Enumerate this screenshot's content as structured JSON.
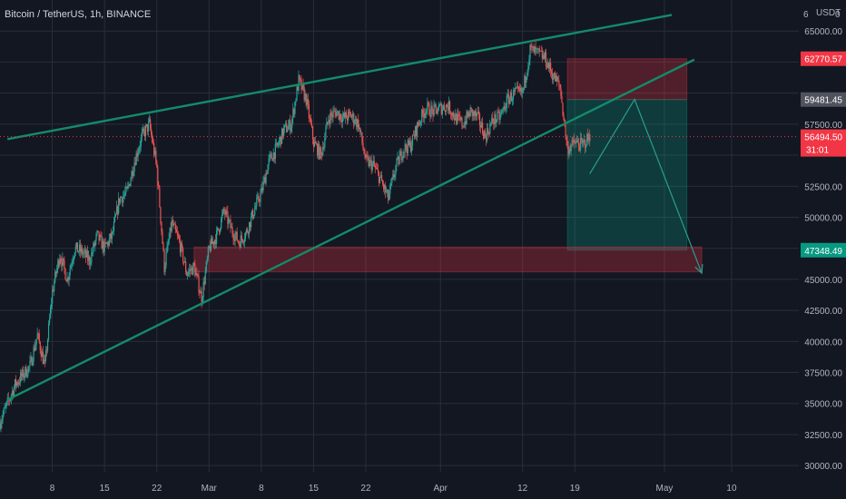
{
  "chart_data": {
    "type": "candlestick",
    "title": "Bitcoin / TetherUS, 1h, BINANCE",
    "currency_label": "USDT",
    "y_top_cut_label": "6",
    "y_axis_ticks": [
      30000,
      32500,
      35000,
      37500,
      40000,
      42500,
      45000,
      47500,
      50000,
      52500,
      55000,
      57500,
      60000,
      62500,
      65000
    ],
    "y_axis_tick_labels": [
      "30000.00",
      "32500.00",
      "35000.00",
      "37500.00",
      "40000.00",
      "42500.00",
      "45000.00",
      "",
      "50000.00",
      "52500.00",
      "",
      "57500.00",
      "",
      "",
      "65000.00"
    ],
    "ylim": [
      29500,
      67500
    ],
    "x_axis_ticks": [
      {
        "date": "2021-02-08",
        "label": "8"
      },
      {
        "date": "2021-02-15",
        "label": "15"
      },
      {
        "date": "2021-02-22",
        "label": "22"
      },
      {
        "date": "2021-03-01",
        "label": "Mar"
      },
      {
        "date": "2021-03-08",
        "label": "8"
      },
      {
        "date": "2021-03-15",
        "label": "15"
      },
      {
        "date": "2021-03-22",
        "label": "22"
      },
      {
        "date": "2021-04-01",
        "label": "Apr"
      },
      {
        "date": "2021-04-12",
        "label": "12"
      },
      {
        "date": "2021-04-19",
        "label": "19"
      },
      {
        "date": "2021-05-01",
        "label": "May"
      },
      {
        "date": "2021-05-10",
        "label": "10"
      }
    ],
    "xlim": [
      "2021-02-01",
      "2021-05-19"
    ],
    "price_path": [
      [
        "2021-02-01",
        33500
      ],
      [
        "2021-02-03",
        36500
      ],
      [
        "2021-02-05",
        38000
      ],
      [
        "2021-02-06",
        40500
      ],
      [
        "2021-02-07",
        38000
      ],
      [
        "2021-02-08",
        44000
      ],
      [
        "2021-02-09",
        47000
      ],
      [
        "2021-02-10",
        45000
      ],
      [
        "2021-02-11",
        47500
      ],
      [
        "2021-02-12",
        47200
      ],
      [
        "2021-02-13",
        46500
      ],
      [
        "2021-02-14",
        48500
      ],
      [
        "2021-02-15",
        47500
      ],
      [
        "2021-02-16",
        48500
      ],
      [
        "2021-02-17",
        51500
      ],
      [
        "2021-02-18",
        52000
      ],
      [
        "2021-02-19",
        54500
      ],
      [
        "2021-02-20",
        56500
      ],
      [
        "2021-02-21",
        57500
      ],
      [
        "2021-02-22",
        54000
      ],
      [
        "2021-02-23",
        46000
      ],
      [
        "2021-02-24",
        49500
      ],
      [
        "2021-02-25",
        48000
      ],
      [
        "2021-02-26",
        45500
      ],
      [
        "2021-02-27",
        46000
      ],
      [
        "2021-02-28",
        43500
      ],
      [
        "2021-03-01",
        47500
      ],
      [
        "2021-03-02",
        48500
      ],
      [
        "2021-03-03",
        50500
      ],
      [
        "2021-03-04",
        49000
      ],
      [
        "2021-03-05",
        48000
      ],
      [
        "2021-03-06",
        48800
      ],
      [
        "2021-03-07",
        50500
      ],
      [
        "2021-03-08",
        52000
      ],
      [
        "2021-03-09",
        54500
      ],
      [
        "2021-03-10",
        55500
      ],
      [
        "2021-03-11",
        57000
      ],
      [
        "2021-03-12",
        57500
      ],
      [
        "2021-03-13",
        61000
      ],
      [
        "2021-03-14",
        59500
      ],
      [
        "2021-03-15",
        56000
      ],
      [
        "2021-03-16",
        55000
      ],
      [
        "2021-03-17",
        58000
      ],
      [
        "2021-03-18",
        58500
      ],
      [
        "2021-03-19",
        58000
      ],
      [
        "2021-03-20",
        58200
      ],
      [
        "2021-03-21",
        57500
      ],
      [
        "2021-03-22",
        54500
      ],
      [
        "2021-03-23",
        54200
      ],
      [
        "2021-03-24",
        53000
      ],
      [
        "2021-03-25",
        51500
      ],
      [
        "2021-03-26",
        54000
      ],
      [
        "2021-03-27",
        55500
      ],
      [
        "2021-03-28",
        55800
      ],
      [
        "2021-03-29",
        57500
      ],
      [
        "2021-03-30",
        58800
      ],
      [
        "2021-03-31",
        58500
      ],
      [
        "2021-04-01",
        58800
      ],
      [
        "2021-04-02",
        59000
      ],
      [
        "2021-04-03",
        58000
      ],
      [
        "2021-04-04",
        57500
      ],
      [
        "2021-04-05",
        58500
      ],
      [
        "2021-04-06",
        58000
      ],
      [
        "2021-04-07",
        56500
      ],
      [
        "2021-04-08",
        57800
      ],
      [
        "2021-04-09",
        58100
      ],
      [
        "2021-04-10",
        59500
      ],
      [
        "2021-04-11",
        60000
      ],
      [
        "2021-04-12",
        60000
      ],
      [
        "2021-04-13",
        63500
      ],
      [
        "2021-04-14",
        63200
      ],
      [
        "2021-04-15",
        62800
      ],
      [
        "2021-04-16",
        61500
      ],
      [
        "2021-04-17",
        60500
      ],
      [
        "2021-04-18",
        55500
      ],
      [
        "2021-04-19",
        56000
      ],
      [
        "2021-04-20",
        55800
      ],
      [
        "2021-04-21",
        56500
      ]
    ],
    "current_price": 56494.5,
    "current_price_label": "56494.50",
    "countdown_label": "31:01",
    "price_tags": [
      {
        "value": 62770.57,
        "label": "62770.57",
        "color": "#f23645"
      },
      {
        "value": 59481.45,
        "label": "59481.45",
        "color": "#50535e"
      },
      {
        "value": 47348.49,
        "label": "47348.49",
        "color": "#089981"
      }
    ],
    "trendlines": [
      {
        "name": "upper-channel",
        "from": [
          "2021-02-02",
          56300
        ],
        "to": [
          "2021-05-02",
          66300
        ]
      },
      {
        "name": "lower-channel",
        "from": [
          "2021-02-02",
          35300
        ],
        "to": [
          "2021-05-05",
          62700
        ]
      }
    ],
    "zones": [
      {
        "name": "stop-zone",
        "x": [
          "2021-04-18",
          "2021-05-04"
        ],
        "y": [
          59481.45,
          62770.57
        ],
        "color": "#f23645"
      },
      {
        "name": "target-zone",
        "x": [
          "2021-04-18",
          "2021-05-04"
        ],
        "y": [
          47348.49,
          59481.45
        ],
        "color": "#089981"
      },
      {
        "name": "support-zone",
        "x": [
          "2021-02-27",
          "2021-05-06"
        ],
        "y": [
          45600,
          47600
        ],
        "color": "#f23645"
      }
    ],
    "projection": [
      [
        "2021-04-21",
        53500
      ],
      [
        "2021-04-27",
        59500
      ],
      [
        "2021-05-06",
        45500
      ]
    ],
    "grid": true,
    "colors": {
      "up": "#26a69a",
      "down": "#ef5350",
      "line": "#138b6a",
      "background": "#131722",
      "grid": "#2a2e39"
    }
  }
}
